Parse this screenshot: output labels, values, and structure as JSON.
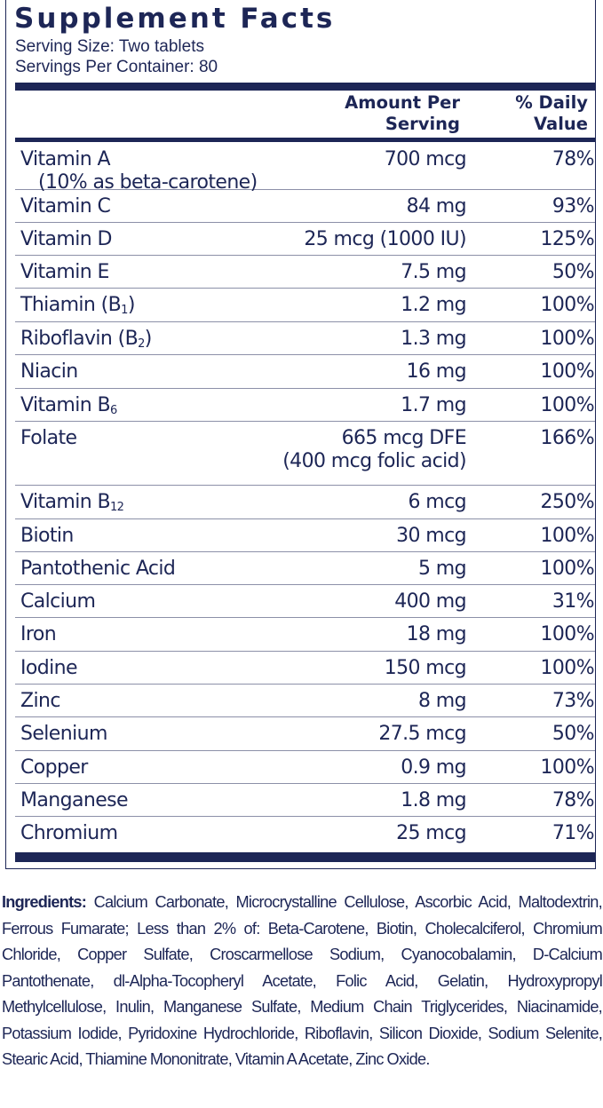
{
  "title": "Supplement Facts",
  "serving_size": "Serving Size: Two tablets",
  "servings_per_container": "Servings Per Container: 80",
  "header": {
    "amount_line1": "Amount Per",
    "amount_line2": "Serving",
    "dv_line1": "% Daily",
    "dv_line2": "Value"
  },
  "nutrients": [
    {
      "name": "Vitamin A",
      "name_sub": "",
      "name_line2": "(10% as beta-carotene)",
      "amount": "700 mcg",
      "amount_line2": "",
      "dv": "78%"
    },
    {
      "name": "Vitamin C",
      "name_sub": "",
      "name_line2": "",
      "amount": "84 mg",
      "amount_line2": "",
      "dv": "93%"
    },
    {
      "name": "Vitamin D",
      "name_sub": "",
      "name_line2": "",
      "amount": "25 mcg (1000 IU)",
      "amount_line2": "",
      "dv": "125%"
    },
    {
      "name": "Vitamin E",
      "name_sub": "",
      "name_line2": "",
      "amount": "7.5 mg",
      "amount_line2": "",
      "dv": "50%"
    },
    {
      "name": "Thiamin (B",
      "name_sub": "1",
      "name_tail": ")",
      "name_line2": "",
      "amount": "1.2 mg",
      "amount_line2": "",
      "dv": "100%"
    },
    {
      "name": "Riboflavin (B",
      "name_sub": "2",
      "name_tail": ")",
      "name_line2": "",
      "amount": "1.3 mg",
      "amount_line2": "",
      "dv": "100%"
    },
    {
      "name": "Niacin",
      "name_sub": "",
      "name_line2": "",
      "amount": "16 mg",
      "amount_line2": "",
      "dv": "100%"
    },
    {
      "name": "Vitamin B",
      "name_sub": "6",
      "name_line2": "",
      "amount": "1.7 mg",
      "amount_line2": "",
      "dv": "100%"
    },
    {
      "name": "Folate",
      "name_sub": "",
      "name_line2": "",
      "amount": "665 mcg DFE",
      "amount_line2": "(400 mcg folic acid)",
      "dv": "166%"
    },
    {
      "name": "Vitamin B",
      "name_sub": "12",
      "name_line2": "",
      "amount": "6 mcg",
      "amount_line2": "",
      "dv": "250%"
    },
    {
      "name": "Biotin",
      "name_sub": "",
      "name_line2": "",
      "amount": "30 mcg",
      "amount_line2": "",
      "dv": "100%"
    },
    {
      "name": "Pantothenic Acid",
      "name_sub": "",
      "name_line2": "",
      "amount": "5 mg",
      "amount_line2": "",
      "dv": "100%"
    },
    {
      "name": "Calcium",
      "name_sub": "",
      "name_line2": "",
      "amount": "400 mg",
      "amount_line2": "",
      "dv": "31%"
    },
    {
      "name": "Iron",
      "name_sub": "",
      "name_line2": "",
      "amount": "18 mg",
      "amount_line2": "",
      "dv": "100%"
    },
    {
      "name": "Iodine",
      "name_sub": "",
      "name_line2": "",
      "amount": "150 mcg",
      "amount_line2": "",
      "dv": "100%"
    },
    {
      "name": "Zinc",
      "name_sub": "",
      "name_line2": "",
      "amount": "8 mg",
      "amount_line2": "",
      "dv": "73%"
    },
    {
      "name": "Selenium",
      "name_sub": "",
      "name_line2": "",
      "amount": "27.5 mcg",
      "amount_line2": "",
      "dv": "50%"
    },
    {
      "name": "Copper",
      "name_sub": "",
      "name_line2": "",
      "amount": "0.9 mg",
      "amount_line2": "",
      "dv": "100%"
    },
    {
      "name": "Manganese",
      "name_sub": "",
      "name_line2": "",
      "amount": "1.8 mg",
      "amount_line2": "",
      "dv": "78%"
    },
    {
      "name": "Chromium",
      "name_sub": "",
      "name_line2": "",
      "amount": "25 mcg",
      "amount_line2": "",
      "dv": "71%"
    }
  ],
  "ingredients": {
    "label": "Ingredients:",
    "text": "Calcium Carbonate, Microcrystalline Cellulose, Ascorbic Acid, Maltodextrin, Ferrous Fumarate; Less than 2% of: Beta-Carotene, Biotin, Cholecalciferol, Chromium Chloride, Copper Sulfate, Croscarmellose Sodium, Cyanocobalamin, D-Calcium Pantothenate, dl-Alpha-Tocopheryl Acetate, Folic Acid, Gelatin, Hydroxypropyl Methylcellulose, Inulin, Manganese Sulfate, Medium Chain Triglycerides, Niacinamide, Potassium Iodide, Pyridoxine Hydrochloride, Riboflavin, Silicon Dioxide, Sodium Selenite, Stearic Acid, Thiamine Mononitrate, Vitamin A Acetate, Zinc Oxide."
  },
  "colors": {
    "ink": "#1d2656",
    "rule": "#8c90a8"
  }
}
